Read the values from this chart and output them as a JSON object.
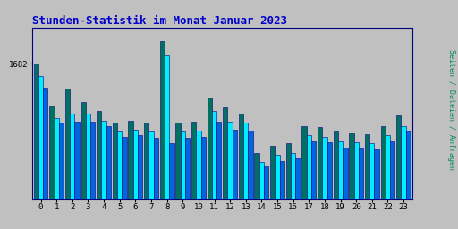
{
  "title": "Stunden-Statistik im Monat Januar 2023",
  "ylabel": "Seiten / Dateien / Anfragen",
  "xlabel_ticks": [
    0,
    1,
    2,
    3,
    4,
    5,
    6,
    7,
    8,
    9,
    10,
    11,
    12,
    13,
    14,
    15,
    16,
    17,
    18,
    19,
    20,
    21,
    22,
    23
  ],
  "bar1_values": [
    1682,
    1590,
    1628,
    1600,
    1580,
    1555,
    1560,
    1555,
    1730,
    1555,
    1558,
    1610,
    1588,
    1575,
    1490,
    1505,
    1510,
    1548,
    1545,
    1535,
    1532,
    1530,
    1548,
    1570
  ],
  "bar2_values": [
    1655,
    1565,
    1575,
    1575,
    1560,
    1535,
    1540,
    1535,
    1700,
    1535,
    1538,
    1580,
    1558,
    1555,
    1470,
    1485,
    1490,
    1528,
    1525,
    1515,
    1512,
    1510,
    1528,
    1548
  ],
  "bar3_values": [
    1630,
    1555,
    1558,
    1558,
    1548,
    1525,
    1528,
    1522,
    1510,
    1522,
    1525,
    1558,
    1540,
    1538,
    1460,
    1472,
    1478,
    1515,
    1512,
    1502,
    1500,
    1498,
    1515,
    1535
  ],
  "bar1_color": "#007060",
  "bar2_color": "#00EEFF",
  "bar3_color": "#0066DD",
  "bg_color": "#C0C0C0",
  "plot_bg_color": "#C0C0C0",
  "title_color": "#0000CC",
  "ylabel_color": "#008866",
  "tick_color": "#000000",
  "border_color": "#000080",
  "ylim_bottom": 1390,
  "ylim_top": 1760,
  "ytick_value": 1682,
  "ytick_label": "1682"
}
